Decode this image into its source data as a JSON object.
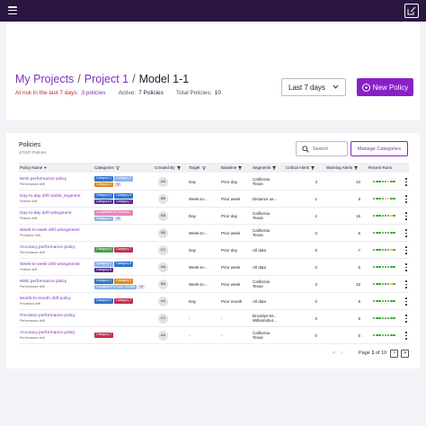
{
  "header": {
    "breadcrumbs": [
      "My Projects",
      "Project 1"
    ],
    "current": "Model 1-1",
    "risk_label": "At risk in the last 7 days:",
    "risk_value": "3 policies",
    "active_label": "Active:",
    "active_value": "7 Policies",
    "total_label": "Total Policies:",
    "total_value": "10",
    "range": "Last 7 days",
    "new_policy": "New Policy"
  },
  "panel": {
    "title": "Policies",
    "subtitle": "47/247 Policies",
    "search_placeholder": "Search",
    "manage_label": "Manage Categories"
  },
  "columns": {
    "policy_name": "Policy Name",
    "categories": "Categories",
    "created_by": "Created By",
    "target": "Target",
    "baseline": "Baseline",
    "segments": "Segments",
    "critical": "Critical Alerts",
    "warning": "Warning Alerts",
    "recent": "Recent Runs"
  },
  "colors": {
    "accent": "#8a1fc9",
    "link": "#7b2fbe",
    "risk": "#c0262b",
    "run_green": "#33a02c",
    "run_yellow": "#f2c12e",
    "run_red": "#d8332f",
    "run_gray": "#cfcdd6"
  },
  "rows": [
    {
      "name": "MAE performance policy",
      "type": "Performance drift",
      "cats": [
        {
          "label": "Category 1",
          "color": "#2f74d0"
        },
        {
          "label": "Category 2",
          "color": "#8fb4e8"
        },
        {
          "label": "Category 3",
          "color": "#e08a1a"
        },
        {
          "label": "+2",
          "color": ""
        }
      ],
      "creator": "AA",
      "target": "Day",
      "baseline": "Prior day",
      "segments": [
        "California",
        "Texas"
      ],
      "critical": "3",
      "warning": "10",
      "runs": [
        "g",
        "g",
        "g",
        "g",
        "g",
        "y",
        "g",
        "g"
      ]
    },
    {
      "name": "Day-to-day drift w/dist_segment",
      "type": "Feature drift",
      "cats": [
        {
          "label": "Category 4",
          "color": "#2f74d0"
        },
        {
          "label": "Category 5",
          "color": "#2f74d0"
        },
        {
          "label": "Category 6",
          "color": "#5b2b8f"
        },
        {
          "label": "Category 7",
          "color": "#5b2b8f"
        }
      ],
      "creator": "BB",
      "target": "Week-to-...",
      "baseline": "Prior week",
      "segments": [
        "Distance se..."
      ],
      "critical": "1",
      "warning": "8",
      "runs": [
        "g",
        "g",
        "g",
        "g",
        "y",
        "y",
        "g",
        "g"
      ]
    },
    {
      "name": "Day-to-day drift w/segment",
      "type": "Feature drift",
      "cats": [
        {
          "label": "LongNameForCategory...",
          "color": "#e583b6"
        },
        {
          "label": "Category 1",
          "color": "#8fb4e8"
        },
        {
          "label": "+3",
          "color": ""
        }
      ],
      "creator": "BB",
      "target": "Day",
      "baseline": "Prior day",
      "segments": [
        "California",
        "Texas"
      ],
      "critical": "2",
      "warning": "15",
      "runs": [
        "g",
        "g",
        "g",
        "g",
        "r",
        "g",
        "y",
        "g"
      ]
    },
    {
      "name": "Week-to-week drift w/segments",
      "type": "Prediction drift",
      "cats": [],
      "creator": "BB",
      "target": "Week-to-...",
      "baseline": "Prior week",
      "segments": [
        "California",
        "Texas"
      ],
      "critical": "0",
      "warning": "6",
      "runs": [
        "g",
        "g",
        "g",
        "g",
        "g",
        "g",
        "g",
        "g"
      ]
    },
    {
      "name": "Accuracy performance policy",
      "type": "Performance drift",
      "cats": [
        {
          "label": "Category 6",
          "color": "#4a9e4a"
        },
        {
          "label": "Category 7",
          "color": "#c2304e"
        }
      ],
      "creator": "CC",
      "target": "Day",
      "baseline": "Prior day",
      "segments": [
        "All data"
      ],
      "critical": "5",
      "warning": "7",
      "runs": [
        "g",
        "g",
        "g",
        "g",
        "r",
        "g",
        "y",
        "g"
      ]
    },
    {
      "name": "Week-to-week drift w/segments",
      "type": "Feature drift",
      "cats": [
        {
          "label": "Category 3",
          "color": "#8fb4e8"
        },
        {
          "label": "Category 4",
          "color": "#2f74d0"
        },
        {
          "label": "Category 8",
          "color": "#5b2b8f"
        }
      ],
      "creator": "AA",
      "target": "Week-to-...",
      "baseline": "Prior week",
      "segments": [
        "All data"
      ],
      "critical": "0",
      "warning": "5",
      "runs": [
        "g",
        "g",
        "g",
        "g",
        "g",
        "g",
        "g",
        "g"
      ]
    },
    {
      "name": "MSE performance policy",
      "type": "Performance drift",
      "cats": [
        {
          "label": "Category 1",
          "color": "#2f74d0"
        },
        {
          "label": "Category 2",
          "color": "#e08a1a"
        },
        {
          "label": "LongNameForCate...Dbd88",
          "color": "#8fb4e8"
        },
        {
          "label": "+2",
          "color": ""
        }
      ],
      "creator": "BB",
      "target": "Week-to-...",
      "baseline": "Prior week",
      "segments": [
        "California",
        "Texas"
      ],
      "critical": "2",
      "warning": "15",
      "runs": [
        "g",
        "g",
        "g",
        "g",
        "r",
        "g",
        "y",
        "g"
      ]
    },
    {
      "name": "Month-to-month drift policy",
      "type": "Prediction drift",
      "cats": [
        {
          "label": "Category 5",
          "color": "#2f74d0"
        },
        {
          "label": "Category 7",
          "color": "#c2304e"
        }
      ],
      "creator": "AA",
      "target": "Day",
      "baseline": "Prior month",
      "segments": [
        "All data"
      ],
      "critical": "0",
      "warning": "8",
      "runs": [
        "g",
        "g",
        "g",
        "g",
        "g",
        "g",
        "g",
        "g"
      ]
    },
    {
      "name": "Precision performance policy",
      "type": "Performance drift",
      "cats": [],
      "creator": "CC",
      "target": "-",
      "baseline": "-",
      "segments": [
        "Brooklyn-M...",
        "Williamsbur..."
      ],
      "critical": "0",
      "warning": "6",
      "runs": [
        "g",
        "g",
        "g",
        "g",
        "g",
        "g",
        "g",
        "g"
      ]
    },
    {
      "name": "Accuracy performance policy",
      "type": "Performance drift",
      "cats": [
        {
          "label": "Category 7",
          "color": "#c2304e"
        }
      ],
      "creator": "AA",
      "target": "-",
      "baseline": "-",
      "segments": [
        "California",
        "Texas"
      ],
      "critical": "0",
      "warning": "6",
      "runs": [
        "g",
        "g",
        "g",
        "g",
        "g",
        "g",
        "g",
        "g"
      ]
    }
  ],
  "pagination": {
    "label": "Page",
    "current": "1",
    "of": "of",
    "total": "10"
  }
}
